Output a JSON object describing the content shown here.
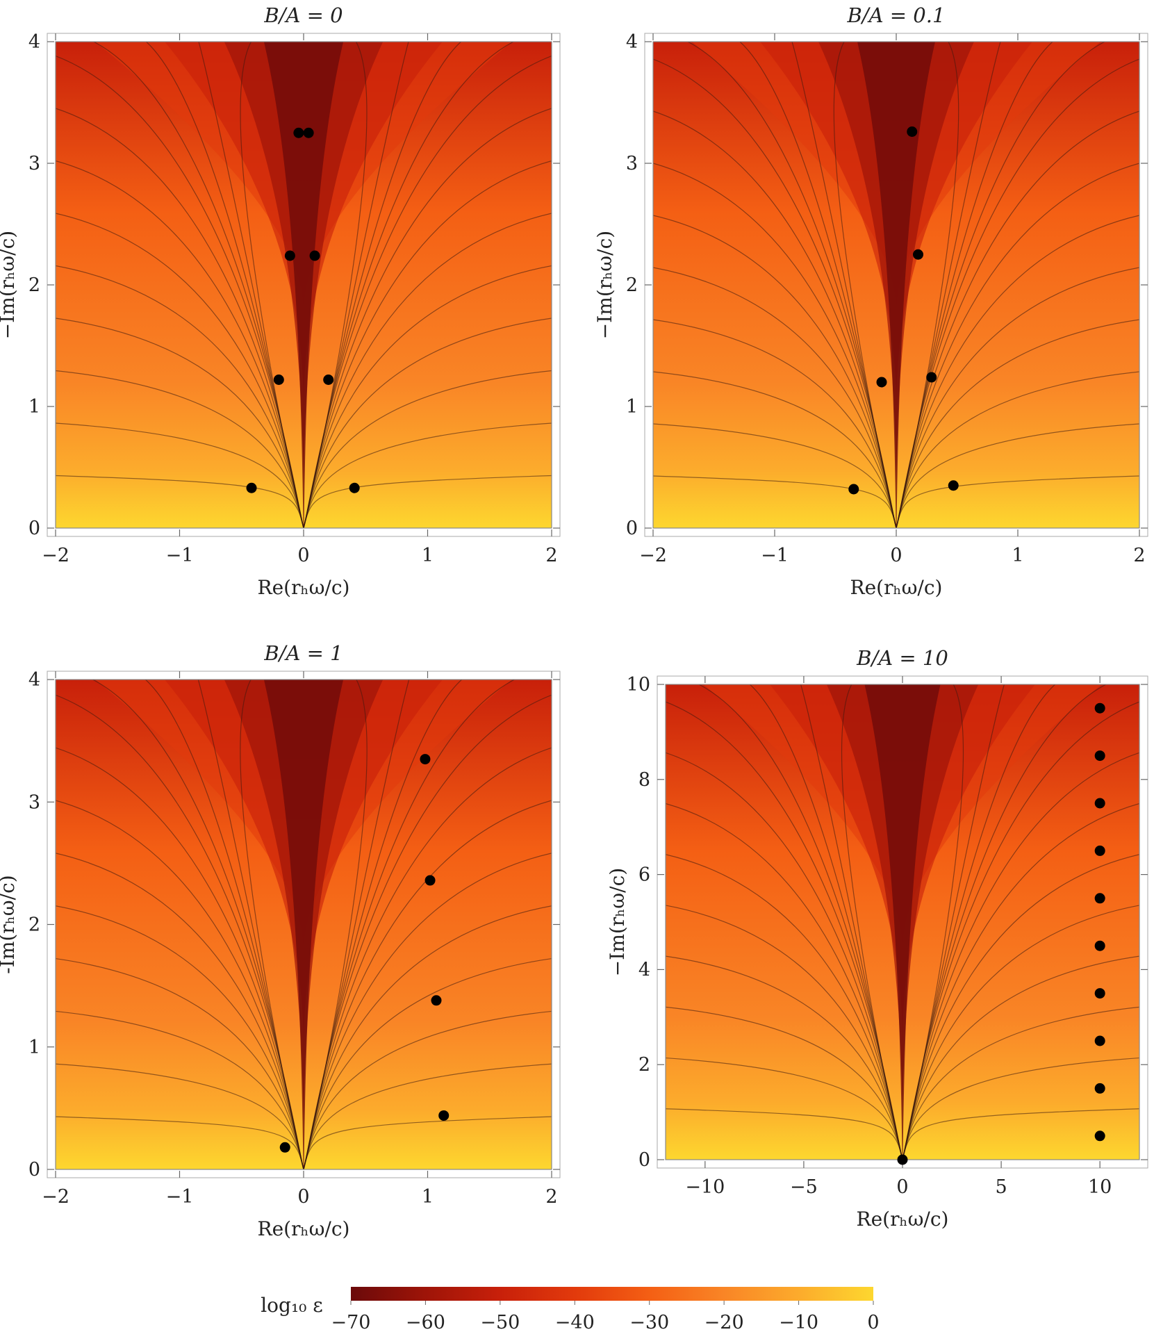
{
  "colorbar": {
    "label": "log₁₀ ε",
    "min": -70,
    "max": 0,
    "ticks": [
      "−70",
      "−60",
      "−50",
      "−40",
      "−30",
      "−20",
      "−10",
      "0"
    ],
    "colors": [
      "#6b0a0a",
      "#9e1408",
      "#c8200a",
      "#e23a0c",
      "#f45f14",
      "#f98526",
      "#fcab2c",
      "#fdd72f"
    ]
  },
  "chart_data": [
    {
      "type": "contour",
      "title": "B/A = 0",
      "xlabel": "Re(rₕω/c)",
      "ylabel": "−Im(rₕω/c)",
      "xlim": [
        -2,
        2
      ],
      "ylim": [
        0,
        4
      ],
      "xticks": [
        {
          "v": -2,
          "t": "−2"
        },
        {
          "v": -1,
          "t": "−1"
        },
        {
          "v": 0,
          "t": "0"
        },
        {
          "v": 1,
          "t": "1"
        },
        {
          "v": 2,
          "t": "2"
        }
      ],
      "yticks": [
        {
          "v": 0,
          "t": "0"
        },
        {
          "v": 1,
          "t": "1"
        },
        {
          "v": 2,
          "t": "2"
        },
        {
          "v": 3,
          "t": "3"
        },
        {
          "v": 4,
          "t": "4"
        }
      ],
      "points": [
        {
          "x": -0.04,
          "y": 3.25
        },
        {
          "x": 0.04,
          "y": 3.25
        },
        {
          "x": -0.11,
          "y": 2.24
        },
        {
          "x": 0.09,
          "y": 2.24
        },
        {
          "x": -0.2,
          "y": 1.22
        },
        {
          "x": 0.2,
          "y": 1.22
        },
        {
          "x": -0.42,
          "y": 0.33
        },
        {
          "x": 0.41,
          "y": 0.33
        }
      ]
    },
    {
      "type": "contour",
      "title": "B/A = 0.1",
      "xlabel": "Re(rₕω/c)",
      "ylabel": "−Im(rₕω/c)",
      "xlim": [
        -2,
        2
      ],
      "ylim": [
        0,
        4
      ],
      "xticks": [
        {
          "v": -2,
          "t": "−2"
        },
        {
          "v": -1,
          "t": "−1"
        },
        {
          "v": 0,
          "t": "0"
        },
        {
          "v": 1,
          "t": "1"
        },
        {
          "v": 2,
          "t": "2"
        }
      ],
      "yticks": [
        {
          "v": 0,
          "t": "0"
        },
        {
          "v": 1,
          "t": "1"
        },
        {
          "v": 2,
          "t": "2"
        },
        {
          "v": 3,
          "t": "3"
        },
        {
          "v": 4,
          "t": "4"
        }
      ],
      "points": [
        {
          "x": 0.13,
          "y": 3.26
        },
        {
          "x": 0.18,
          "y": 2.25
        },
        {
          "x": -0.12,
          "y": 1.2
        },
        {
          "x": 0.29,
          "y": 1.24
        },
        {
          "x": -0.35,
          "y": 0.32
        },
        {
          "x": 0.47,
          "y": 0.35
        }
      ]
    },
    {
      "type": "contour",
      "title": "B/A = 1",
      "xlabel": "Re(rₕω/c)",
      "ylabel": "-Im(rₕω/c)",
      "xlim": [
        -2,
        2
      ],
      "ylim": [
        0,
        4
      ],
      "xticks": [
        {
          "v": -2,
          "t": "−2"
        },
        {
          "v": -1,
          "t": "−1"
        },
        {
          "v": 0,
          "t": "0"
        },
        {
          "v": 1,
          "t": "1"
        },
        {
          "v": 2,
          "t": "2"
        }
      ],
      "yticks": [
        {
          "v": 0,
          "t": "0"
        },
        {
          "v": 1,
          "t": "1"
        },
        {
          "v": 2,
          "t": "2"
        },
        {
          "v": 3,
          "t": "3"
        },
        {
          "v": 4,
          "t": "4"
        }
      ],
      "points": [
        {
          "x": 0.98,
          "y": 3.35
        },
        {
          "x": 1.02,
          "y": 2.36
        },
        {
          "x": 1.07,
          "y": 1.38
        },
        {
          "x": 1.13,
          "y": 0.44
        },
        {
          "x": -0.15,
          "y": 0.18
        }
      ]
    },
    {
      "type": "contour",
      "title": "B/A = 10",
      "xlabel": "Re(rₕω/c)",
      "ylabel": "−Im(rₕω/c)",
      "xlim": [
        -12,
        12
      ],
      "ylim": [
        0,
        10
      ],
      "xticks": [
        {
          "v": -10,
          "t": "−10"
        },
        {
          "v": -5,
          "t": "−5"
        },
        {
          "v": 0,
          "t": "0"
        },
        {
          "v": 5,
          "t": "5"
        },
        {
          "v": 10,
          "t": "10"
        }
      ],
      "yticks": [
        {
          "v": 0,
          "t": "0"
        },
        {
          "v": 2,
          "t": "2"
        },
        {
          "v": 4,
          "t": "4"
        },
        {
          "v": 6,
          "t": "6"
        },
        {
          "v": 8,
          "t": "8"
        },
        {
          "v": 10,
          "t": "10"
        }
      ],
      "points": [
        {
          "x": 0,
          "y": 0
        },
        {
          "x": 10,
          "y": 0.5
        },
        {
          "x": 10,
          "y": 1.5
        },
        {
          "x": 10,
          "y": 2.5
        },
        {
          "x": 10,
          "y": 3.5
        },
        {
          "x": 10,
          "y": 4.5
        },
        {
          "x": 10,
          "y": 5.5
        },
        {
          "x": 10,
          "y": 6.5
        },
        {
          "x": 10,
          "y": 7.5
        },
        {
          "x": 10,
          "y": 8.5
        },
        {
          "x": 10,
          "y": 9.5
        }
      ]
    }
  ]
}
